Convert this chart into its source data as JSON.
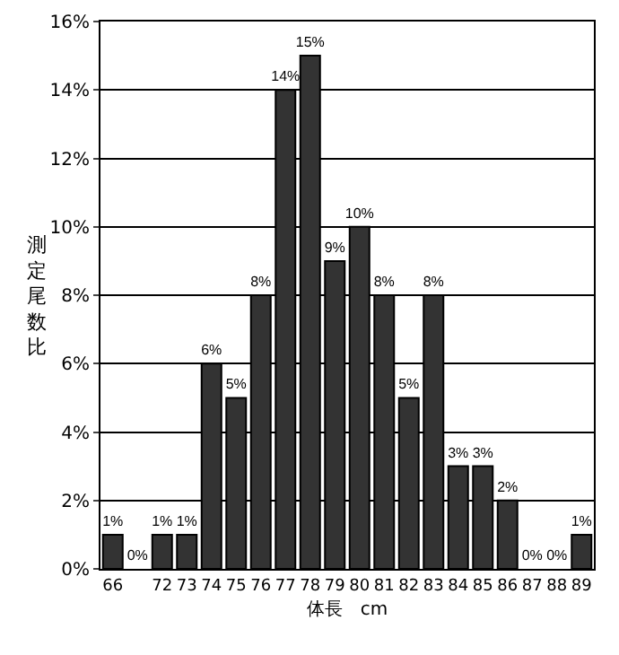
{
  "chart_data": {
    "type": "bar",
    "xlabel": "体長　cm",
    "ylabel": "測定尾数比",
    "categories": [
      "66",
      null,
      "72",
      "73",
      "74",
      "75",
      "76",
      "77",
      "78",
      "79",
      "80",
      "81",
      "82",
      "83",
      "84",
      "85",
      "86",
      "87",
      "88",
      "89"
    ],
    "values": [
      1,
      0,
      1,
      1,
      6,
      5,
      8,
      14,
      15,
      9,
      10,
      8,
      5,
      8,
      3,
      3,
      2,
      0,
      0,
      1
    ],
    "value_labels": [
      "1%",
      "0%",
      "1%",
      "1%",
      "6%",
      "5%",
      "8%",
      "14%",
      "15%",
      "9%",
      "10%",
      "8%",
      "5%",
      "8%",
      "3%",
      "3%",
      "2%",
      "0%",
      "0%",
      "1%"
    ],
    "color": "#333333",
    "ylim": [
      0,
      16
    ],
    "yticks": [
      {
        "value": 0,
        "label": "0%"
      },
      {
        "value": 2,
        "label": "2%"
      },
      {
        "value": 4,
        "label": "4%"
      },
      {
        "value": 6,
        "label": "6%"
      },
      {
        "value": 8,
        "label": "8%"
      },
      {
        "value": 10,
        "label": "10%"
      },
      {
        "value": 12,
        "label": "12%"
      },
      {
        "value": 14,
        "label": "14%"
      },
      {
        "value": 16,
        "label": "16%"
      }
    ],
    "grid": "y"
  }
}
